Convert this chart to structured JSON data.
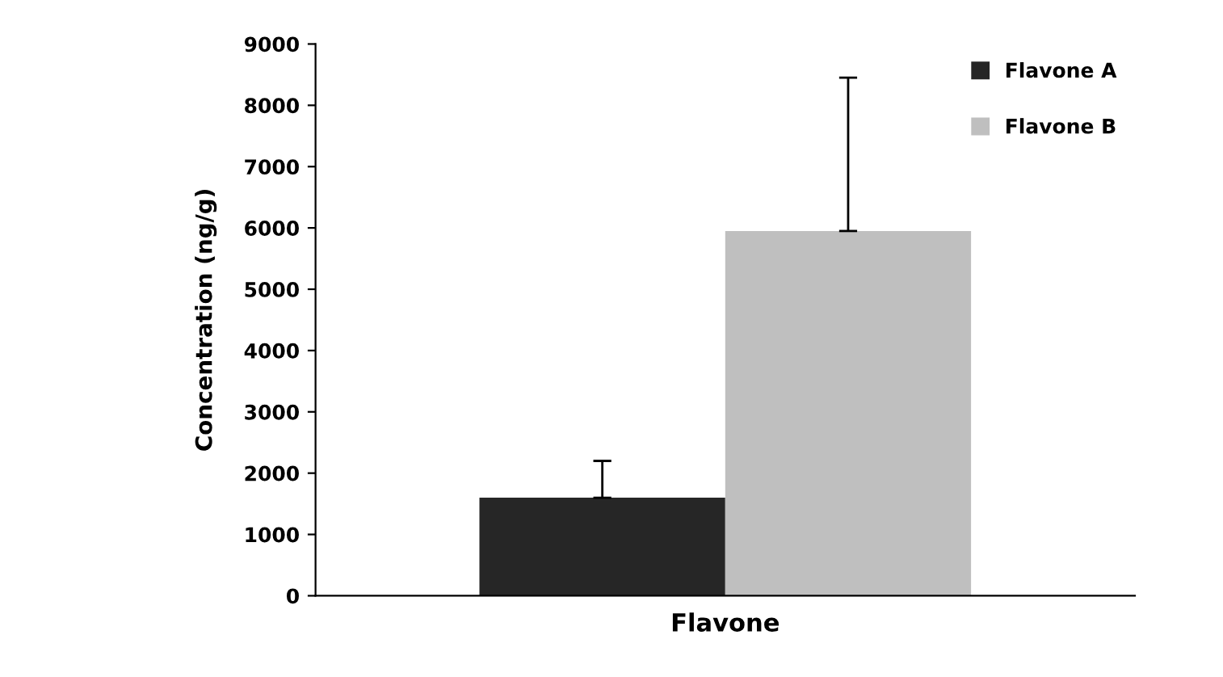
{
  "chart_data": {
    "type": "bar",
    "xlabel": "Flavone",
    "ylabel": "Concentration (ng/g)",
    "categories": [
      null
    ],
    "series": [
      {
        "name": "Flavone A",
        "color": "#262626",
        "values": [
          1600
        ],
        "errors": [
          [
            1600,
            2200
          ]
        ]
      },
      {
        "name": "Flavone B",
        "color": "#bfbfbf",
        "values": [
          5950
        ],
        "errors": [
          [
            5950,
            8450
          ]
        ]
      }
    ],
    "ylim": [
      0,
      9000
    ],
    "yticks": [
      0,
      1000,
      2000,
      3000,
      4000,
      5000,
      6000,
      7000,
      8000,
      9000
    ],
    "grid": false,
    "legend": "top right"
  }
}
